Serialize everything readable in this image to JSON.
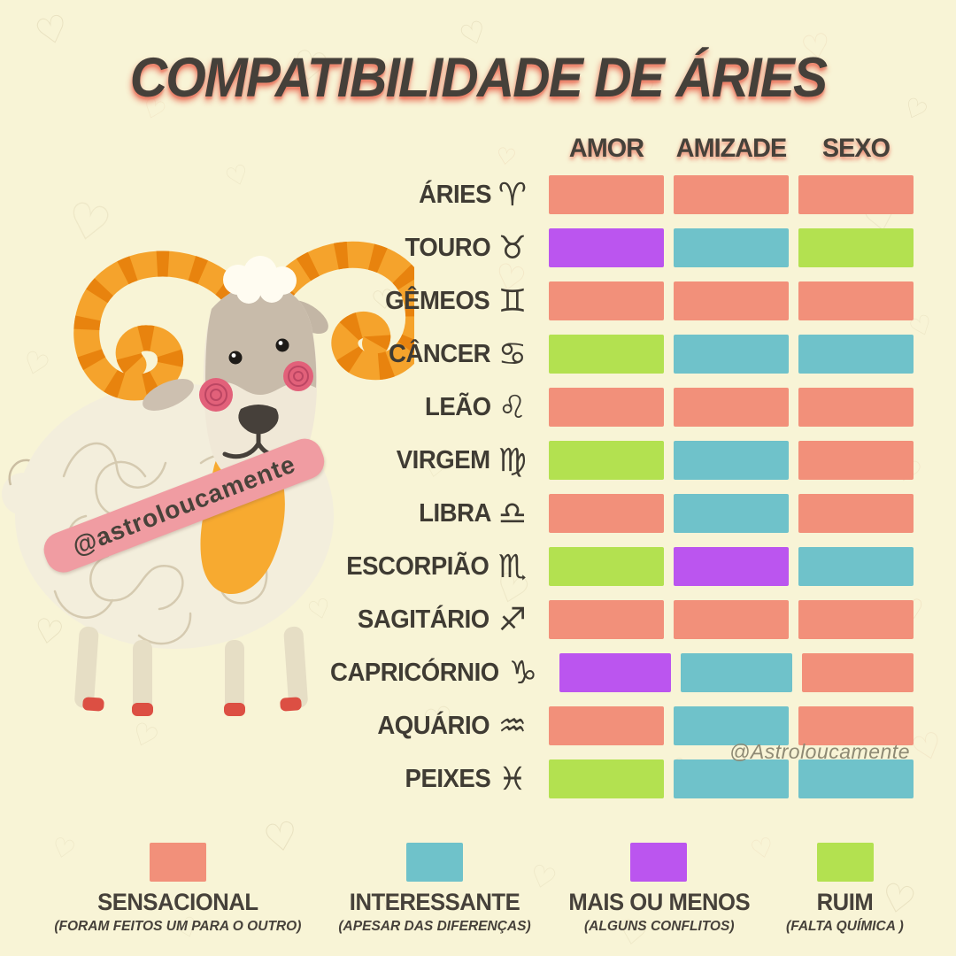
{
  "chart_data": {
    "type": "heatmap",
    "title": "COMPATIBILIDADE DE ÁRIES",
    "columns": [
      "AMOR",
      "AMIZADE",
      "SEXO"
    ],
    "rating_scale": {
      "sensacional": {
        "label": "SENSACIONAL",
        "desc": "(FORAM FEITOS UM PARA O OUTRO)",
        "color": "#F2907A"
      },
      "interessante": {
        "label": "INTERESSANTE",
        "desc": "(APESAR DAS DIFERENÇAS)",
        "color": "#6FC2CA"
      },
      "mais_ou_menos": {
        "label": "MAIS OU MENOS",
        "desc": "(ALGUNS CONFLITOS)",
        "color": "#BB55EF"
      },
      "ruim": {
        "label": "RUIM",
        "desc": "(FALTA QUÍMICA )",
        "color": "#B3E150"
      }
    },
    "legend_order": [
      "sensacional",
      "interessante",
      "mais_ou_menos",
      "ruim"
    ],
    "rows": [
      {
        "sign": "ÁRIES",
        "symbol": "♈",
        "ratings": [
          "sensacional",
          "sensacional",
          "sensacional"
        ]
      },
      {
        "sign": "TOURO",
        "symbol": "♉",
        "ratings": [
          "mais_ou_menos",
          "interessante",
          "ruim"
        ]
      },
      {
        "sign": "GÊMEOS",
        "symbol": "♊",
        "ratings": [
          "sensacional",
          "sensacional",
          "sensacional"
        ]
      },
      {
        "sign": "CÂNCER",
        "symbol": "♋",
        "ratings": [
          "ruim",
          "interessante",
          "interessante"
        ]
      },
      {
        "sign": "LEÃO",
        "symbol": "♌",
        "ratings": [
          "sensacional",
          "sensacional",
          "sensacional"
        ]
      },
      {
        "sign": "VIRGEM",
        "symbol": "♍",
        "ratings": [
          "ruim",
          "interessante",
          "sensacional"
        ]
      },
      {
        "sign": "LIBRA",
        "symbol": "♎",
        "ratings": [
          "sensacional",
          "interessante",
          "sensacional"
        ]
      },
      {
        "sign": "ESCORPIÃO",
        "symbol": "♏",
        "ratings": [
          "ruim",
          "mais_ou_menos",
          "interessante"
        ]
      },
      {
        "sign": "SAGITÁRIO",
        "symbol": "♐",
        "ratings": [
          "sensacional",
          "sensacional",
          "sensacional"
        ]
      },
      {
        "sign": "CAPRICÓRNIO",
        "symbol": "♑",
        "ratings": [
          "mais_ou_menos",
          "interessante",
          "sensacional"
        ]
      },
      {
        "sign": "AQUÁRIO",
        "symbol": "♒",
        "ratings": [
          "sensacional",
          "interessante",
          "sensacional"
        ]
      },
      {
        "sign": "PEIXES",
        "symbol": "♓",
        "ratings": [
          "ruim",
          "interessante",
          "interessante"
        ]
      }
    ]
  },
  "watermark": "@Astroloucamente",
  "banner": "@astroloucamente"
}
